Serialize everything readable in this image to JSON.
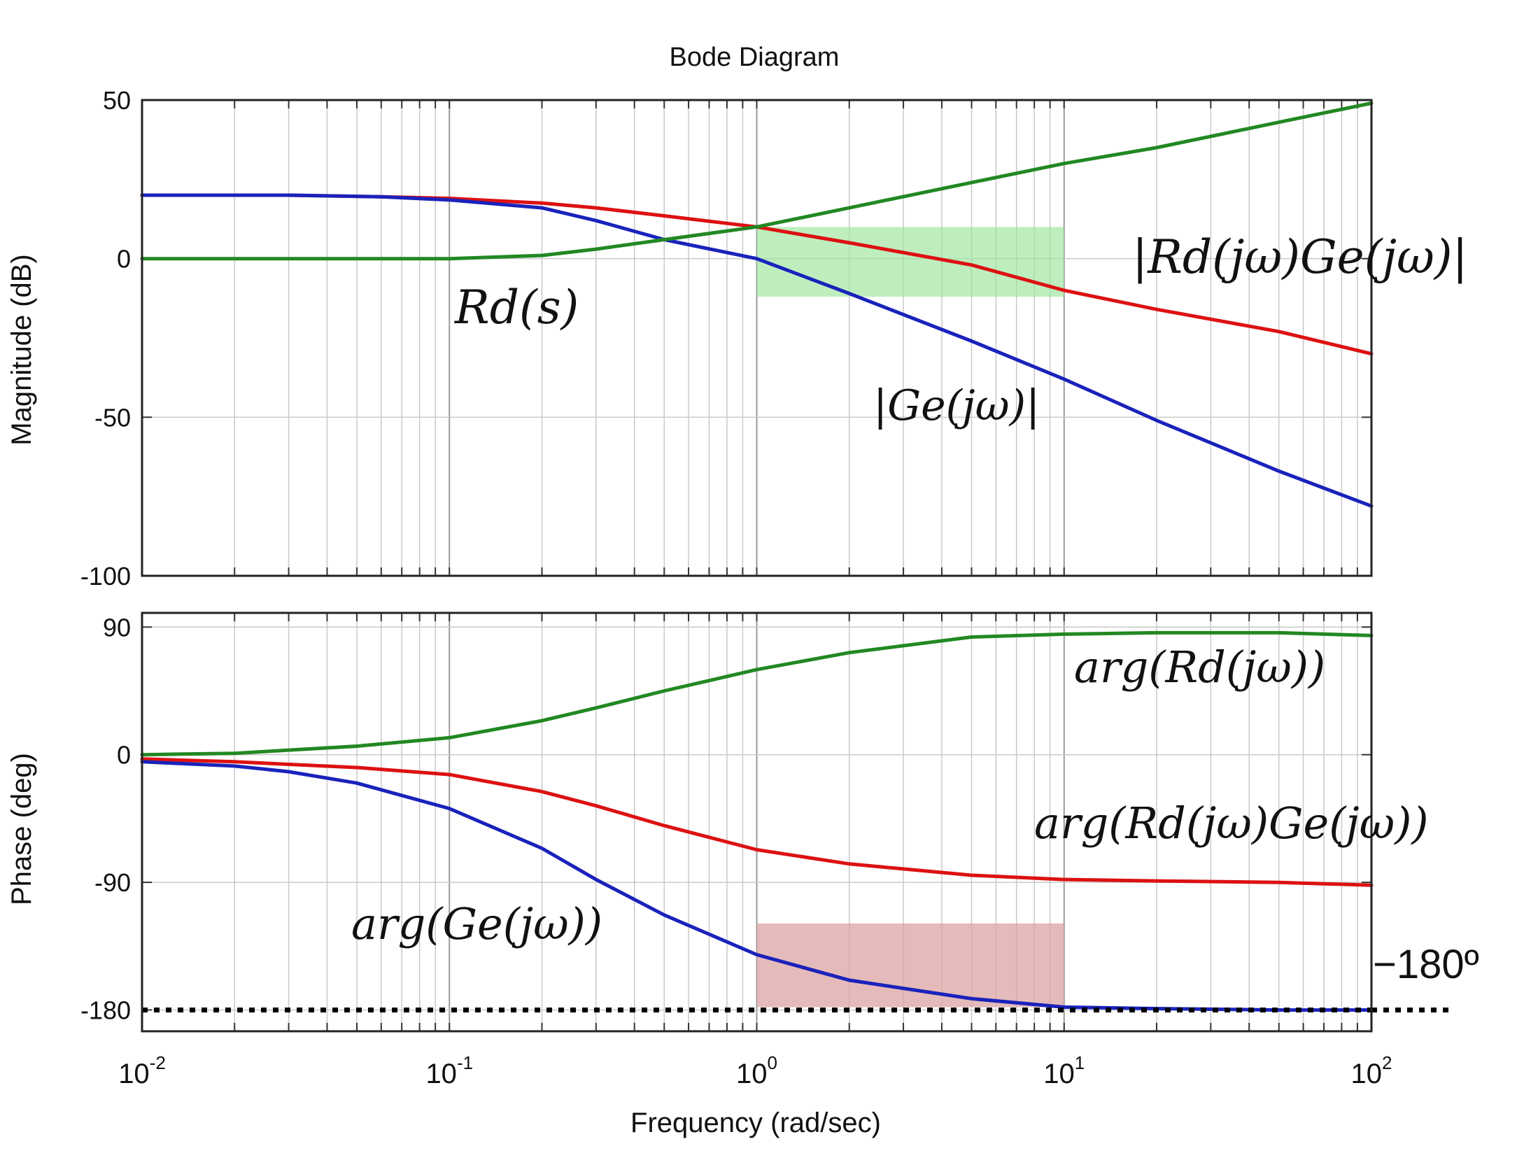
{
  "chart_data": [
    {
      "type": "line",
      "title": "Bode Diagram",
      "ylabel": "Magnitude (dB)",
      "xscale": "log",
      "xlim": [
        0.01,
        100
      ],
      "ylim": [
        -100,
        50
      ],
      "yticks": [
        "50",
        "0",
        "-50",
        "-100"
      ],
      "grid": true,
      "series": [
        {
          "name": "|Rd(jω)Ge(jω)|",
          "color": "#dd1111",
          "x": [
            0.01,
            0.03,
            0.06,
            0.1,
            0.2,
            0.3,
            0.5,
            1,
            2,
            5,
            10,
            20,
            50,
            100
          ],
          "y": [
            20,
            20,
            19.5,
            19,
            17.5,
            16,
            13.5,
            10,
            5,
            -2,
            -10,
            -16,
            -23,
            -30
          ]
        },
        {
          "name": "|Ge(jω)|",
          "color": "#1a22bb",
          "x": [
            0.01,
            0.03,
            0.06,
            0.1,
            0.2,
            0.3,
            0.5,
            1,
            2,
            5,
            10,
            20,
            50,
            100
          ],
          "y": [
            20,
            20,
            19.5,
            18.5,
            16,
            12,
            6,
            0,
            -11,
            -26,
            -38,
            -51,
            -67,
            -78
          ]
        },
        {
          "name": "Rd(s)",
          "color": "#228822",
          "x": [
            0.01,
            0.03,
            0.06,
            0.1,
            0.2,
            0.3,
            0.5,
            1,
            2,
            5,
            10,
            20,
            50,
            100
          ],
          "y": [
            0,
            0,
            0,
            0,
            1,
            3,
            6,
            10,
            16,
            24,
            30,
            35,
            43,
            49
          ]
        }
      ]
    },
    {
      "type": "line",
      "xlabel": "Frequency  (rad/sec)",
      "ylabel": "Phase (deg)",
      "xscale": "log",
      "xlim": [
        0.01,
        100
      ],
      "ylim": [
        -195,
        100
      ],
      "yticks": [
        "90",
        "0",
        "-90",
        "-180"
      ],
      "xticks": [
        {
          "base": "10",
          "exp": "-2"
        },
        {
          "base": "10",
          "exp": "-1"
        },
        {
          "base": "10",
          "exp": "0"
        },
        {
          "base": "10",
          "exp": "1"
        },
        {
          "base": "10",
          "exp": "2"
        }
      ],
      "grid": true,
      "series": [
        {
          "name": "arg(Rd(jω))",
          "color": "#228822",
          "x": [
            0.01,
            0.02,
            0.05,
            0.1,
            0.2,
            0.3,
            0.5,
            1,
            2,
            5,
            10,
            20,
            50,
            100
          ],
          "y": [
            0,
            1,
            6,
            12,
            24,
            33,
            45,
            60,
            72,
            83,
            85,
            86,
            86,
            84
          ]
        },
        {
          "name": "arg(Rd(jω)Ge(jω))",
          "color": "#dd1111",
          "x": [
            0.01,
            0.02,
            0.05,
            0.1,
            0.2,
            0.3,
            0.5,
            1,
            2,
            5,
            10,
            20,
            50,
            100
          ],
          "y": [
            -3,
            -5,
            -9,
            -14,
            -26,
            -36,
            -50,
            -67,
            -77,
            -85,
            -88,
            -89,
            -90,
            -92
          ]
        },
        {
          "name": "arg(Ge(jω))",
          "color": "#1a22bb",
          "x": [
            0.01,
            0.02,
            0.03,
            0.05,
            0.1,
            0.2,
            0.3,
            0.5,
            1,
            2,
            5,
            10,
            20,
            50,
            100
          ],
          "y": [
            -5,
            -8,
            -12,
            -20,
            -38,
            -66,
            -88,
            -113,
            -141,
            -159,
            -172,
            -178,
            -179,
            -180,
            -180
          ]
        },
        {
          "name": "-180 reference",
          "color": "#000000",
          "dashed": true,
          "x": [
            0.01,
            100
          ],
          "y": [
            -180,
            -180
          ]
        }
      ]
    }
  ],
  "annotations": {
    "top_rdge": "|Rd(jω)Ge(jω)|",
    "top_rd": "Rd(s)",
    "top_ge": "|Ge(jω)|",
    "bot_rd": "arg(Rd(jω))",
    "bot_rdge": "arg(Rd(jω)Ge(jω))",
    "bot_ge": "arg(Ge(jω))",
    "bot_180": "−180º"
  },
  "highlights": [
    {
      "panel": "magnitude",
      "x": [
        1,
        10
      ],
      "y": [
        -12,
        10
      ],
      "color": "#9be59b"
    },
    {
      "panel": "phase",
      "x": [
        1,
        10
      ],
      "y": [
        -178,
        -119
      ],
      "color": "#dba3a3"
    }
  ]
}
